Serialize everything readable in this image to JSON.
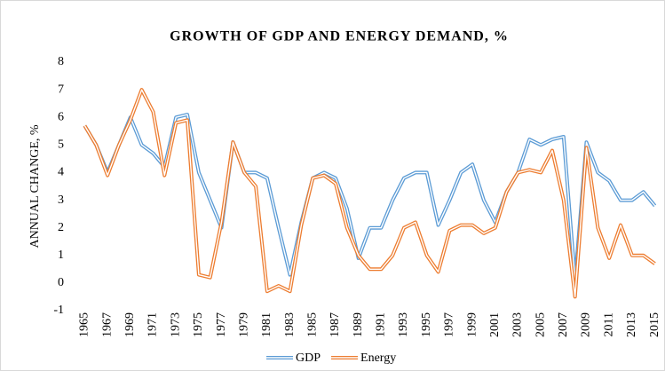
{
  "chart_data": {
    "type": "line",
    "title": "GROWTH OF GDP AND ENERGY DEMAND, %",
    "y_label": "ANNUAL CHANGE, %",
    "categories": [
      "1965",
      null,
      "1967",
      null,
      "1969",
      null,
      "1971",
      null,
      "1973",
      null,
      "1975",
      null,
      "1977",
      null,
      "1979",
      null,
      "1981",
      null,
      "1983",
      null,
      "1985",
      null,
      "1987",
      null,
      "1989",
      null,
      "1991",
      null,
      "1993",
      null,
      "1995",
      null,
      "1997",
      null,
      "1999",
      null,
      "2001",
      null,
      "2003",
      null,
      "2005",
      null,
      "2007",
      null,
      "2009",
      null,
      "2011",
      null,
      "2013",
      null,
      "2015"
    ],
    "series": [
      {
        "name": "GDP",
        "color": "#5b9bd5",
        "values": [
          5.7,
          5.0,
          4.0,
          5.0,
          6.0,
          5.0,
          4.7,
          4.2,
          6.0,
          6.1,
          4.0,
          3.0,
          2.0,
          5.1,
          4.0,
          4.0,
          3.8,
          2.0,
          0.3,
          2.2,
          3.8,
          4.0,
          3.8,
          2.7,
          0.9,
          2.0,
          2.0,
          3.0,
          3.8,
          4.0,
          4.0,
          2.1,
          3.0,
          4.0,
          4.3,
          3.0,
          2.2,
          3.3,
          4.0,
          5.2,
          5.0,
          5.2,
          5.3,
          0.1,
          5.1,
          4.0,
          3.7,
          3.0,
          3.0,
          3.3,
          2.8
        ]
      },
      {
        "name": "Energy",
        "color": "#ed7d31",
        "values": [
          5.7,
          5.0,
          3.9,
          5.0,
          5.9,
          7.0,
          6.2,
          3.9,
          5.8,
          5.9,
          0.3,
          0.2,
          2.2,
          5.1,
          4.0,
          3.5,
          -0.3,
          -0.1,
          -0.3,
          2.1,
          3.8,
          3.9,
          3.6,
          2.0,
          1.0,
          0.5,
          0.5,
          1.0,
          2.0,
          2.2,
          1.0,
          0.4,
          1.9,
          2.1,
          2.1,
          1.8,
          2.0,
          3.3,
          4.0,
          4.1,
          4.0,
          4.8,
          3.0,
          -0.5,
          4.9,
          2.0,
          0.9,
          2.1,
          1.0,
          1.0,
          0.7
        ]
      }
    ],
    "ylim": [
      -1,
      8
    ],
    "yticks": [
      -1,
      0,
      1,
      2,
      3,
      4,
      5,
      6,
      7,
      8
    ],
    "grid": false,
    "legend": "bottom"
  }
}
